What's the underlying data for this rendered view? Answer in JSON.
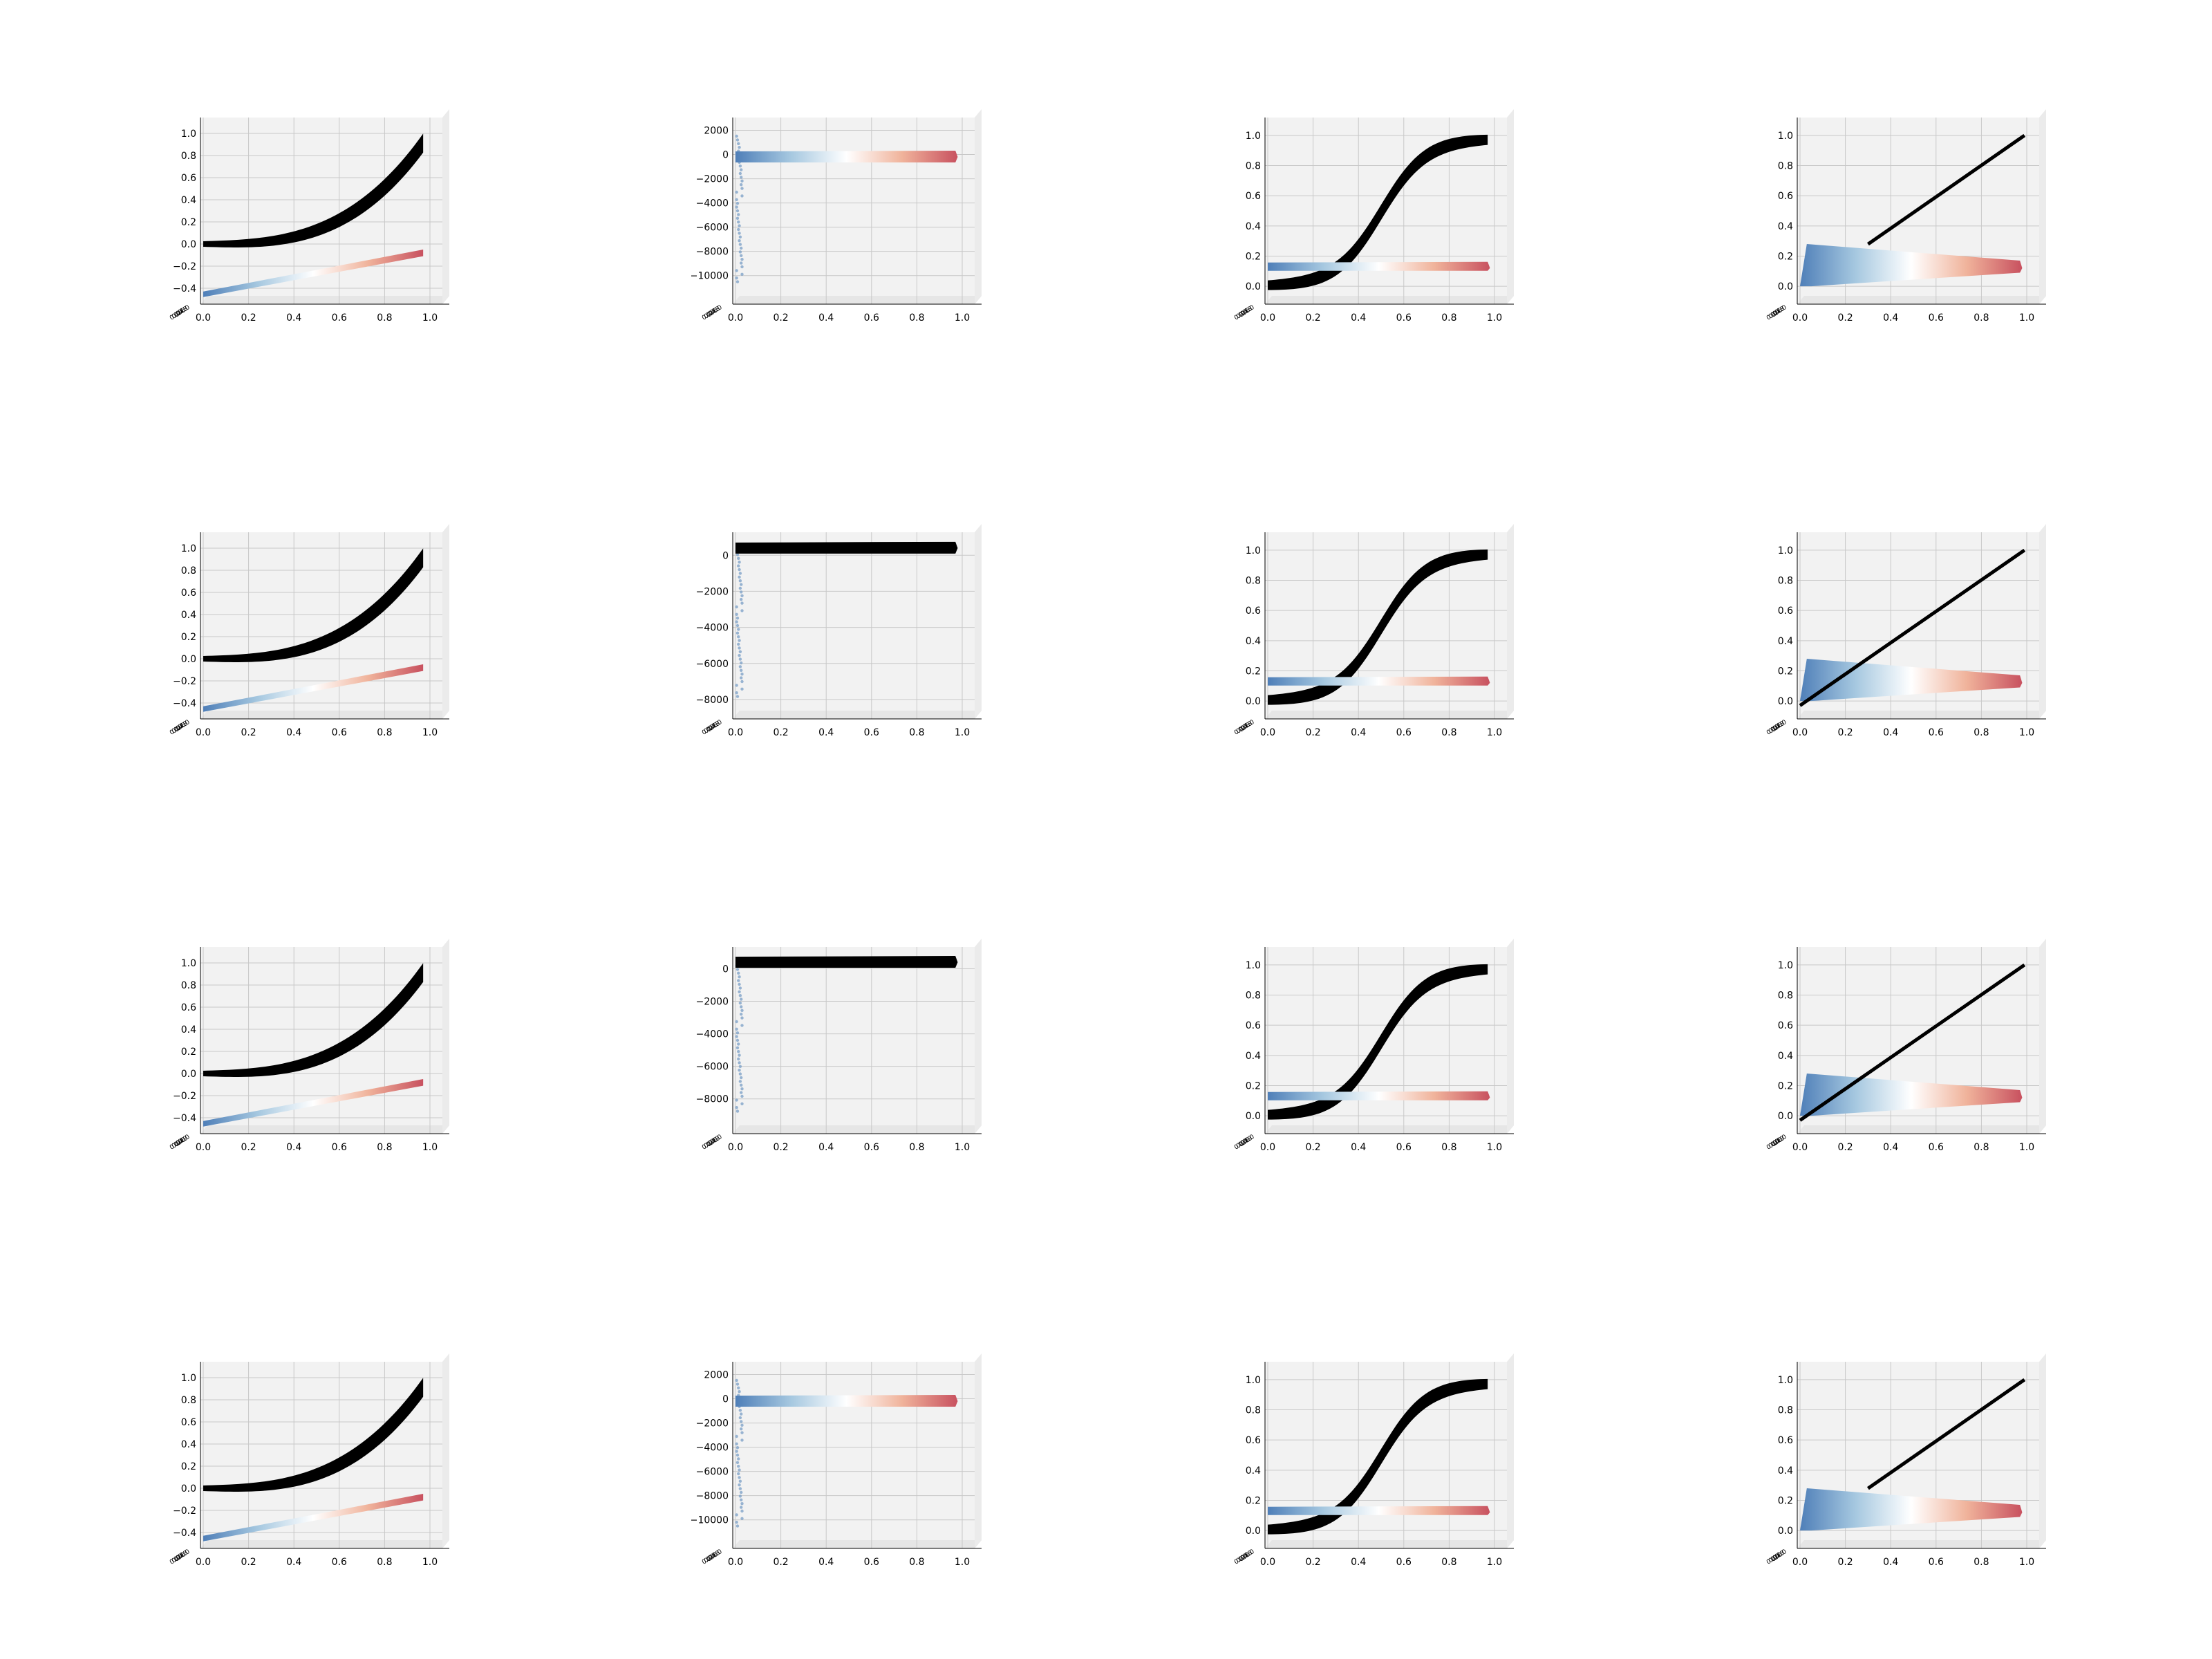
{
  "colors": {
    "pane": "#f2f2f2",
    "floor": "#e6e6e6",
    "grid": "#c8c8c8",
    "curve": "#000000",
    "cmap": [
      "#4f7fb8",
      "#a6c8e0",
      "#ffffff",
      "#f0b39b",
      "#c8515f"
    ]
  },
  "chart_data": [
    {
      "id": "r1c1",
      "type": "scatter",
      "view": "3d-front",
      "kind": "cubic-band",
      "x_ticks": [
        "0.0",
        "0.2",
        "0.4",
        "0.6",
        "0.8",
        "1.0"
      ],
      "y_ticks": [
        "1.0",
        "0.8",
        "0.6",
        "0.4",
        "0.2",
        "0.0",
        "−0.2",
        "−0.4"
      ],
      "ylim": [
        -0.45,
        1.05
      ],
      "curve_color": "#000000",
      "series_values": {
        "x": [
          0,
          0.2,
          0.4,
          0.6,
          0.8,
          0.97
        ],
        "y": [
          0,
          0.02,
          0.1,
          0.3,
          0.6,
          0.95
        ]
      },
      "colored_band": {
        "x": [
          0,
          1
        ],
        "y_start": -0.42,
        "y_end": -0.05
      }
    },
    {
      "id": "r1c2",
      "type": "scatter",
      "view": "3d-front",
      "kind": "outlier-spike",
      "x_ticks": [
        "0.0",
        "0.2",
        "0.4",
        "0.6",
        "0.8",
        "1.0"
      ],
      "y_ticks": [
        "2000",
        "0",
        "−2000",
        "−4000",
        "−6000",
        "−8000",
        "−10000"
      ],
      "ylim": [
        -11500,
        2200
      ],
      "band_y": -200,
      "band_colored": true
    },
    {
      "id": "r1c3",
      "type": "scatter",
      "view": "3d-front",
      "kind": "sigmoid",
      "x_ticks": [
        "0.0",
        "0.2",
        "0.4",
        "0.6",
        "0.8",
        "1.0"
      ],
      "y_ticks": [
        "1.0",
        "0.8",
        "0.6",
        "0.4",
        "0.2",
        "0.0"
      ],
      "ylim": [
        -0.05,
        1.05
      ],
      "band_y": 0.13
    },
    {
      "id": "r1c4",
      "type": "scatter",
      "view": "3d-front",
      "kind": "diagonal",
      "x_ticks": [
        "0.0",
        "0.2",
        "0.4",
        "0.6",
        "0.8",
        "1.0"
      ],
      "y_ticks": [
        "1.0",
        "0.8",
        "0.6",
        "0.4",
        "0.2",
        "0.0"
      ],
      "ylim": [
        -0.05,
        1.05
      ],
      "diag_start_x": 0.3
    },
    {
      "id": "r2c1",
      "type": "scatter",
      "view": "3d-front",
      "kind": "cubic-band",
      "x_ticks": [
        "0.0",
        "0.2",
        "0.4",
        "0.6",
        "0.8",
        "1.0"
      ],
      "y_ticks": [
        "1.0",
        "0.8",
        "0.6",
        "0.4",
        "0.2",
        "0.0",
        "−0.2",
        "−0.4"
      ],
      "ylim": [
        -0.45,
        1.05
      ]
    },
    {
      "id": "r2c2",
      "type": "scatter",
      "view": "3d-front",
      "kind": "outlier-spike",
      "x_ticks": [
        "0.0",
        "0.2",
        "0.4",
        "0.6",
        "0.8",
        "1.0"
      ],
      "y_ticks": [
        "0",
        "−2000",
        "−4000",
        "−6000",
        "−8000"
      ],
      "ylim": [
        -8500,
        700
      ],
      "band_y": 400,
      "band_colored": false
    },
    {
      "id": "r2c3",
      "type": "scatter",
      "view": "3d-front",
      "kind": "sigmoid",
      "x_ticks": [
        "0.0",
        "0.2",
        "0.4",
        "0.6",
        "0.8",
        "1.0"
      ],
      "y_ticks": [
        "1.0",
        "0.8",
        "0.6",
        "0.4",
        "0.2",
        "0.0"
      ],
      "ylim": [
        -0.05,
        1.05
      ],
      "band_y": 0.13
    },
    {
      "id": "r2c4",
      "type": "scatter",
      "view": "3d-front",
      "kind": "diagonal",
      "x_ticks": [
        "0.0",
        "0.2",
        "0.4",
        "0.6",
        "0.8",
        "1.0"
      ],
      "y_ticks": [
        "1.0",
        "0.8",
        "0.6",
        "0.4",
        "0.2",
        "0.0"
      ],
      "ylim": [
        -0.05,
        1.05
      ],
      "diag_start_x": 0
    },
    {
      "id": "r3c1",
      "type": "scatter",
      "view": "3d-front",
      "kind": "cubic-band",
      "x_ticks": [
        "0.0",
        "0.2",
        "0.4",
        "0.6",
        "0.8",
        "1.0"
      ],
      "y_ticks": [
        "1.0",
        "0.8",
        "0.6",
        "0.4",
        "0.2",
        "0.0",
        "−0.2",
        "−0.4"
      ],
      "ylim": [
        -0.45,
        1.05
      ]
    },
    {
      "id": "r3c2",
      "type": "scatter",
      "view": "3d-front",
      "kind": "outlier-spike",
      "x_ticks": [
        "0.0",
        "0.2",
        "0.4",
        "0.6",
        "0.8",
        "1.0"
      ],
      "y_ticks": [
        "0",
        "−2000",
        "−4000",
        "−6000",
        "−8000"
      ],
      "ylim": [
        -9500,
        700
      ],
      "band_y": 400,
      "band_colored": false
    },
    {
      "id": "r3c3",
      "type": "scatter",
      "view": "3d-front",
      "kind": "sigmoid",
      "x_ticks": [
        "0.0",
        "0.2",
        "0.4",
        "0.6",
        "0.8",
        "1.0"
      ],
      "y_ticks": [
        "1.0",
        "0.8",
        "0.6",
        "0.4",
        "0.2",
        "0.0"
      ],
      "ylim": [
        -0.05,
        1.05
      ],
      "band_y": 0.13
    },
    {
      "id": "r3c4",
      "type": "scatter",
      "view": "3d-front",
      "kind": "diagonal",
      "x_ticks": [
        "0.0",
        "0.2",
        "0.4",
        "0.6",
        "0.8",
        "1.0"
      ],
      "y_ticks": [
        "1.0",
        "0.8",
        "0.6",
        "0.4",
        "0.2",
        "0.0"
      ],
      "ylim": [
        -0.05,
        1.05
      ],
      "diag_start_x": 0
    },
    {
      "id": "r4c1",
      "type": "scatter",
      "view": "3d-front",
      "kind": "cubic-band",
      "x_ticks": [
        "0.0",
        "0.2",
        "0.4",
        "0.6",
        "0.8",
        "1.0"
      ],
      "y_ticks": [
        "1.0",
        "0.8",
        "0.6",
        "0.4",
        "0.2",
        "0.0",
        "−0.2",
        "−0.4"
      ],
      "ylim": [
        -0.45,
        1.05
      ]
    },
    {
      "id": "r4c2",
      "type": "scatter",
      "view": "3d-front",
      "kind": "outlier-spike",
      "x_ticks": [
        "0.0",
        "0.2",
        "0.4",
        "0.6",
        "0.8",
        "1.0"
      ],
      "y_ticks": [
        "2000",
        "0",
        "−2000",
        "−4000",
        "−6000",
        "−8000",
        "−10000"
      ],
      "ylim": [
        -11500,
        2200
      ],
      "band_y": -200,
      "band_colored": true
    },
    {
      "id": "r4c3",
      "type": "scatter",
      "view": "3d-front",
      "kind": "sigmoid",
      "x_ticks": [
        "0.0",
        "0.2",
        "0.4",
        "0.6",
        "0.8",
        "1.0"
      ],
      "y_ticks": [
        "1.0",
        "0.8",
        "0.6",
        "0.4",
        "0.2",
        "0.0"
      ],
      "ylim": [
        -0.05,
        1.05
      ],
      "band_y": 0.13
    },
    {
      "id": "r4c4",
      "type": "scatter",
      "view": "3d-front",
      "kind": "diagonal",
      "x_ticks": [
        "0.0",
        "0.2",
        "0.4",
        "0.6",
        "0.8",
        "1.0"
      ],
      "y_ticks": [
        "1.0",
        "0.8",
        "0.6",
        "0.4",
        "0.2",
        "0.0"
      ],
      "ylim": [
        -0.05,
        1.05
      ],
      "diag_start_x": 0.3
    }
  ],
  "z_tick_labels": [
    "0.0",
    "0.2",
    "0.4",
    "0.6",
    "0.8",
    "1.0"
  ]
}
